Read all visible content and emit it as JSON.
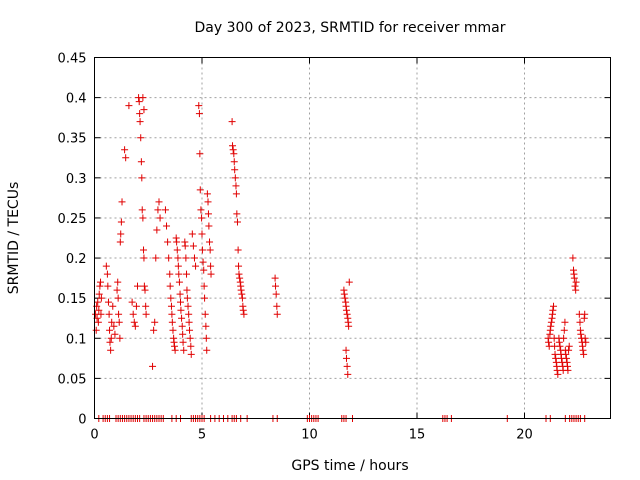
{
  "chart_data": {
    "type": "scatter",
    "title": "Day 300 of 2023, SRMTID for receiver mmar",
    "xlabel": "GPS time / hours",
    "ylabel": "SRMTID / TECUs",
    "xlim": [
      0,
      24
    ],
    "ylim": [
      0,
      0.45
    ],
    "xticks": [
      0,
      5,
      10,
      15,
      20
    ],
    "xtick_labels": [
      "0",
      "5",
      "10",
      "15",
      "20"
    ],
    "yticks": [
      0,
      0.05,
      0.1,
      0.15,
      0.2,
      0.25,
      0.3,
      0.35,
      0.4,
      0.45
    ],
    "ytick_labels": [
      "0",
      "0.05",
      "0.1",
      "0.15",
      "0.2",
      "0.25",
      "0.3",
      "0.35",
      "0.4",
      "0.45"
    ],
    "grid": true,
    "marker": "+",
    "color": "#e00000",
    "series": [
      {
        "name": "SRMTID",
        "points": [
          [
            0.05,
            0.13
          ],
          [
            0.08,
            0.11
          ],
          [
            0.1,
            0.14
          ],
          [
            0.12,
            0.125
          ],
          [
            0.15,
            0.145
          ],
          [
            0.18,
            0.12
          ],
          [
            0.2,
            0.135
          ],
          [
            0.22,
            0.155
          ],
          [
            0.25,
            0.165
          ],
          [
            0.28,
            0.17
          ],
          [
            0.3,
            0.13
          ],
          [
            0.32,
            0.15
          ],
          [
            0.55,
            0.19
          ],
          [
            0.6,
            0.18
          ],
          [
            0.62,
            0.165
          ],
          [
            0.65,
            0.145
          ],
          [
            0.68,
            0.13
          ],
          [
            0.7,
            0.11
          ],
          [
            0.72,
            0.095
          ],
          [
            0.75,
            0.085
          ],
          [
            0.78,
            0.1
          ],
          [
            0.8,
            0.12
          ],
          [
            0.85,
            0.14
          ],
          [
            0.9,
            0.115
          ],
          [
            0.95,
            0.105
          ],
          [
            1.05,
            0.16
          ],
          [
            1.08,
            0.17
          ],
          [
            1.1,
            0.15
          ],
          [
            1.12,
            0.13
          ],
          [
            1.15,
            0.12
          ],
          [
            1.18,
            0.1
          ],
          [
            1.2,
            0.22
          ],
          [
            1.22,
            0.23
          ],
          [
            1.25,
            0.245
          ],
          [
            1.28,
            0.27
          ],
          [
            1.4,
            0.335
          ],
          [
            1.45,
            0.325
          ],
          [
            1.6,
            0.39
          ],
          [
            1.75,
            0.145
          ],
          [
            1.8,
            0.13
          ],
          [
            1.85,
            0.12
          ],
          [
            1.9,
            0.115
          ],
          [
            1.95,
            0.14
          ],
          [
            2.0,
            0.165
          ],
          [
            2.05,
            0.4
          ],
          [
            2.08,
            0.395
          ],
          [
            2.1,
            0.38
          ],
          [
            2.12,
            0.37
          ],
          [
            2.15,
            0.35
          ],
          [
            2.18,
            0.32
          ],
          [
            2.2,
            0.3
          ],
          [
            2.22,
            0.26
          ],
          [
            2.25,
            0.25
          ],
          [
            2.28,
            0.21
          ],
          [
            2.3,
            0.2
          ],
          [
            2.32,
            0.165
          ],
          [
            2.35,
            0.16
          ],
          [
            2.38,
            0.14
          ],
          [
            2.4,
            0.13
          ],
          [
            2.25,
            0.4
          ],
          [
            2.3,
            0.385
          ],
          [
            2.7,
            0.065
          ],
          [
            2.75,
            0.11
          ],
          [
            2.8,
            0.12
          ],
          [
            2.85,
            0.2
          ],
          [
            2.9,
            0.235
          ],
          [
            2.95,
            0.26
          ],
          [
            3.0,
            0.27
          ],
          [
            3.05,
            0.25
          ],
          [
            3.3,
            0.26
          ],
          [
            3.35,
            0.24
          ],
          [
            3.4,
            0.22
          ],
          [
            3.45,
            0.2
          ],
          [
            3.5,
            0.18
          ],
          [
            3.52,
            0.165
          ],
          [
            3.55,
            0.15
          ],
          [
            3.58,
            0.14
          ],
          [
            3.6,
            0.13
          ],
          [
            3.62,
            0.12
          ],
          [
            3.65,
            0.11
          ],
          [
            3.68,
            0.1
          ],
          [
            3.7,
            0.095
          ],
          [
            3.72,
            0.09
          ],
          [
            3.75,
            0.085
          ],
          [
            3.8,
            0.225
          ],
          [
            3.82,
            0.22
          ],
          [
            3.85,
            0.21
          ],
          [
            3.88,
            0.2
          ],
          [
            3.9,
            0.19
          ],
          [
            3.92,
            0.18
          ],
          [
            3.95,
            0.17
          ],
          [
            3.98,
            0.155
          ],
          [
            4.0,
            0.145
          ],
          [
            4.02,
            0.135
          ],
          [
            4.05,
            0.125
          ],
          [
            4.08,
            0.115
          ],
          [
            4.1,
            0.105
          ],
          [
            4.12,
            0.095
          ],
          [
            4.15,
            0.085
          ],
          [
            4.2,
            0.22
          ],
          [
            4.22,
            0.215
          ],
          [
            4.25,
            0.2
          ],
          [
            4.28,
            0.18
          ],
          [
            4.3,
            0.16
          ],
          [
            4.32,
            0.15
          ],
          [
            4.35,
            0.14
          ],
          [
            4.38,
            0.13
          ],
          [
            4.4,
            0.12
          ],
          [
            4.42,
            0.11
          ],
          [
            4.45,
            0.1
          ],
          [
            4.48,
            0.09
          ],
          [
            4.5,
            0.08
          ],
          [
            4.55,
            0.23
          ],
          [
            4.6,
            0.215
          ],
          [
            4.65,
            0.2
          ],
          [
            4.7,
            0.19
          ],
          [
            4.85,
            0.39
          ],
          [
            4.88,
            0.38
          ],
          [
            4.9,
            0.33
          ],
          [
            4.92,
            0.285
          ],
          [
            4.95,
            0.26
          ],
          [
            4.98,
            0.25
          ],
          [
            5.0,
            0.23
          ],
          [
            5.02,
            0.21
          ],
          [
            5.05,
            0.195
          ],
          [
            5.08,
            0.185
          ],
          [
            5.1,
            0.165
          ],
          [
            5.12,
            0.15
          ],
          [
            5.15,
            0.13
          ],
          [
            5.18,
            0.115
          ],
          [
            5.2,
            0.1
          ],
          [
            5.22,
            0.085
          ],
          [
            5.25,
            0.28
          ],
          [
            5.28,
            0.27
          ],
          [
            5.3,
            0.255
          ],
          [
            5.32,
            0.24
          ],
          [
            5.35,
            0.22
          ],
          [
            5.38,
            0.21
          ],
          [
            5.4,
            0.19
          ],
          [
            5.42,
            0.18
          ],
          [
            6.4,
            0.37
          ],
          [
            6.42,
            0.34
          ],
          [
            6.45,
            0.335
          ],
          [
            6.48,
            0.33
          ],
          [
            6.5,
            0.32
          ],
          [
            6.52,
            0.31
          ],
          [
            6.55,
            0.3
          ],
          [
            6.58,
            0.29
          ],
          [
            6.6,
            0.28
          ],
          [
            6.62,
            0.255
          ],
          [
            6.65,
            0.245
          ],
          [
            6.68,
            0.21
          ],
          [
            6.7,
            0.19
          ],
          [
            6.72,
            0.18
          ],
          [
            6.75,
            0.175
          ],
          [
            6.78,
            0.17
          ],
          [
            6.8,
            0.165
          ],
          [
            6.82,
            0.16
          ],
          [
            6.85,
            0.155
          ],
          [
            6.88,
            0.15
          ],
          [
            6.9,
            0.14
          ],
          [
            6.92,
            0.135
          ],
          [
            6.95,
            0.13
          ],
          [
            8.4,
            0.175
          ],
          [
            8.42,
            0.165
          ],
          [
            8.45,
            0.155
          ],
          [
            8.48,
            0.14
          ],
          [
            8.5,
            0.13
          ],
          [
            11.6,
            0.16
          ],
          [
            11.62,
            0.155
          ],
          [
            11.65,
            0.15
          ],
          [
            11.68,
            0.145
          ],
          [
            11.7,
            0.14
          ],
          [
            11.72,
            0.135
          ],
          [
            11.75,
            0.13
          ],
          [
            11.78,
            0.125
          ],
          [
            11.8,
            0.12
          ],
          [
            11.82,
            0.115
          ],
          [
            11.85,
            0.17
          ],
          [
            11.7,
            0.085
          ],
          [
            11.72,
            0.075
          ],
          [
            11.75,
            0.065
          ],
          [
            11.78,
            0.055
          ],
          [
            21.1,
            0.1
          ],
          [
            21.12,
            0.095
          ],
          [
            21.15,
            0.09
          ],
          [
            21.18,
            0.105
          ],
          [
            21.2,
            0.11
          ],
          [
            21.22,
            0.115
          ],
          [
            21.25,
            0.12
          ],
          [
            21.28,
            0.125
          ],
          [
            21.3,
            0.13
          ],
          [
            21.32,
            0.135
          ],
          [
            21.35,
            0.14
          ],
          [
            21.38,
            0.1
          ],
          [
            21.4,
            0.09
          ],
          [
            21.42,
            0.08
          ],
          [
            21.45,
            0.075
          ],
          [
            21.48,
            0.07
          ],
          [
            21.5,
            0.065
          ],
          [
            21.52,
            0.06
          ],
          [
            21.55,
            0.055
          ],
          [
            21.6,
            0.1
          ],
          [
            21.62,
            0.095
          ],
          [
            21.65,
            0.09
          ],
          [
            21.68,
            0.085
          ],
          [
            21.7,
            0.08
          ],
          [
            21.72,
            0.075
          ],
          [
            21.75,
            0.07
          ],
          [
            21.78,
            0.065
          ],
          [
            21.8,
            0.06
          ],
          [
            21.82,
            0.1
          ],
          [
            21.85,
            0.11
          ],
          [
            21.88,
            0.12
          ],
          [
            21.9,
            0.085
          ],
          [
            21.92,
            0.08
          ],
          [
            21.95,
            0.075
          ],
          [
            21.98,
            0.07
          ],
          [
            22.0,
            0.065
          ],
          [
            22.02,
            0.06
          ],
          [
            22.05,
            0.085
          ],
          [
            22.08,
            0.09
          ],
          [
            22.25,
            0.2
          ],
          [
            22.28,
            0.185
          ],
          [
            22.3,
            0.18
          ],
          [
            22.32,
            0.175
          ],
          [
            22.35,
            0.165
          ],
          [
            22.38,
            0.16
          ],
          [
            22.4,
            0.17
          ],
          [
            22.55,
            0.13
          ],
          [
            22.58,
            0.12
          ],
          [
            22.6,
            0.11
          ],
          [
            22.62,
            0.105
          ],
          [
            22.65,
            0.1
          ],
          [
            22.68,
            0.095
          ],
          [
            22.7,
            0.09
          ],
          [
            22.72,
            0.085
          ],
          [
            22.75,
            0.08
          ],
          [
            22.78,
            0.125
          ],
          [
            22.8,
            0.13
          ],
          [
            22.82,
            0.1
          ],
          [
            22.85,
            0.095
          ],
          [
            0.2,
            0
          ],
          [
            0.4,
            0
          ],
          [
            0.5,
            0
          ],
          [
            0.6,
            0
          ],
          [
            0.7,
            0
          ],
          [
            1.0,
            0
          ],
          [
            1.1,
            0
          ],
          [
            1.2,
            0
          ],
          [
            1.3,
            0
          ],
          [
            1.4,
            0
          ],
          [
            1.5,
            0
          ],
          [
            1.6,
            0
          ],
          [
            1.7,
            0
          ],
          [
            1.8,
            0
          ],
          [
            1.9,
            0
          ],
          [
            2.0,
            0
          ],
          [
            2.1,
            0
          ],
          [
            2.3,
            0
          ],
          [
            2.4,
            0
          ],
          [
            2.5,
            0
          ],
          [
            2.6,
            0
          ],
          [
            2.7,
            0
          ],
          [
            2.8,
            0
          ],
          [
            2.9,
            0
          ],
          [
            3.0,
            0
          ],
          [
            3.1,
            0
          ],
          [
            3.2,
            0
          ],
          [
            3.6,
            0
          ],
          [
            3.8,
            0
          ],
          [
            4.0,
            0
          ],
          [
            4.5,
            0
          ],
          [
            4.6,
            0
          ],
          [
            4.7,
            0
          ],
          [
            4.8,
            0
          ],
          [
            4.9,
            0
          ],
          [
            5.0,
            0
          ],
          [
            5.1,
            0
          ],
          [
            5.4,
            0
          ],
          [
            5.6,
            0
          ],
          [
            5.8,
            0
          ],
          [
            6.0,
            0
          ],
          [
            6.2,
            0
          ],
          [
            6.4,
            0
          ],
          [
            6.5,
            0
          ],
          [
            6.6,
            0
          ],
          [
            6.8,
            0
          ],
          [
            7.1,
            0
          ],
          [
            8.3,
            0
          ],
          [
            8.5,
            0
          ],
          [
            9.9,
            0
          ],
          [
            10.0,
            0
          ],
          [
            10.1,
            0
          ],
          [
            10.2,
            0
          ],
          [
            10.3,
            0
          ],
          [
            10.4,
            0
          ],
          [
            11.5,
            0
          ],
          [
            11.6,
            0
          ],
          [
            11.7,
            0
          ],
          [
            12.0,
            0
          ],
          [
            16.2,
            0
          ],
          [
            16.3,
            0
          ],
          [
            16.4,
            0
          ],
          [
            16.6,
            0
          ],
          [
            19.2,
            0
          ],
          [
            21.0,
            0
          ],
          [
            21.2,
            0
          ],
          [
            21.9,
            0
          ],
          [
            22.1,
            0
          ],
          [
            22.2,
            0
          ],
          [
            22.3,
            0
          ],
          [
            22.4,
            0
          ],
          [
            22.5,
            0
          ],
          [
            22.6,
            0
          ],
          [
            22.8,
            0
          ]
        ]
      }
    ]
  }
}
